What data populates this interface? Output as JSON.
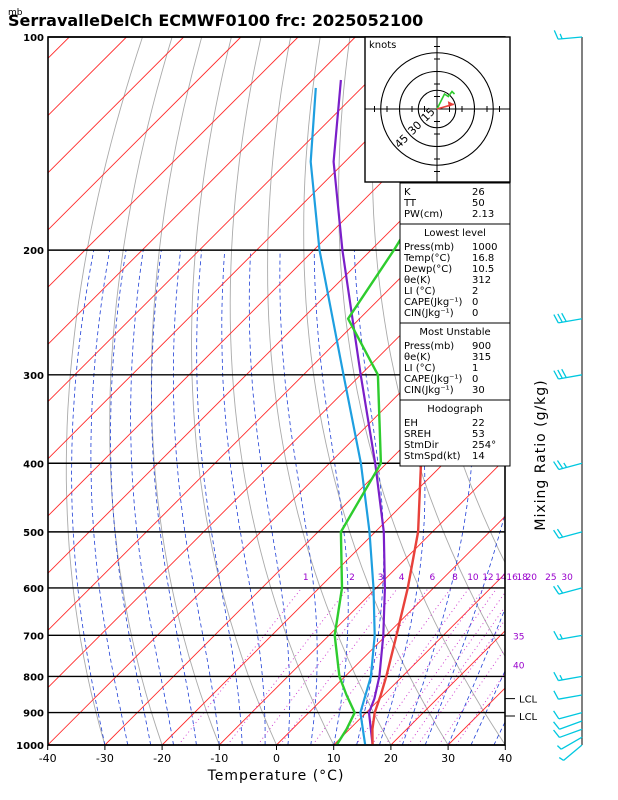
{
  "chart_data": {
    "type": "skew-t log-p sounding",
    "title": "SerravalleDelCh ECMWF0100 frc: 2025052100",
    "pressure_unit": "mb",
    "xlabel": "Temperature (°C)",
    "ylabel_right": "Mixing Ratio (g/kg)",
    "x_ticks": [
      -40,
      -30,
      -20,
      -10,
      0,
      10,
      20,
      30,
      40
    ],
    "pressure_levels": [
      100,
      200,
      300,
      400,
      500,
      600,
      700,
      800,
      900,
      1000
    ],
    "mixing_ratio_labels": [
      "1",
      "2",
      "3",
      "4",
      "6",
      "8",
      "10",
      "12",
      "14",
      "16",
      "18",
      "20",
      "25",
      "30"
    ],
    "mixing_ratio_values": [
      1,
      2,
      3,
      4,
      6,
      8,
      10,
      12,
      14,
      16,
      18,
      20,
      25,
      30
    ],
    "theta_e_labels": [
      "35",
      "40"
    ],
    "lcl_labels": [
      "LCL",
      "LCL"
    ],
    "lcl_pressures": [
      860,
      910
    ],
    "temperature_profile": [
      {
        "p": 1000,
        "t": 16.8
      },
      {
        "p": 950,
        "t": 14.0
      },
      {
        "p": 900,
        "t": 11.5
      },
      {
        "p": 850,
        "t": 9.5
      },
      {
        "p": 800,
        "t": 7.2
      },
      {
        "p": 700,
        "t": 1.8
      },
      {
        "p": 600,
        "t": -4.5
      },
      {
        "p": 500,
        "t": -12.5
      },
      {
        "p": 400,
        "t": -24.0
      },
      {
        "p": 300,
        "t": -39.0
      },
      {
        "p": 250,
        "t": -49.0
      },
      {
        "p": 200,
        "t": -49.5
      },
      {
        "p": 150,
        "t": -52.0
      },
      {
        "p": 100,
        "t": -59.0
      }
    ],
    "dewpoint_profile": [
      {
        "p": 1000,
        "t": 10.5
      },
      {
        "p": 950,
        "t": 9.5
      },
      {
        "p": 900,
        "t": 8.0
      },
      {
        "p": 850,
        "t": 3.5
      },
      {
        "p": 800,
        "t": -1.0
      },
      {
        "p": 700,
        "t": -9.0
      },
      {
        "p": 600,
        "t": -16.0
      },
      {
        "p": 500,
        "t": -26.0
      },
      {
        "p": 400,
        "t": -31.0
      },
      {
        "p": 300,
        "t": -47.0
      },
      {
        "p": 250,
        "t": -62.0
      },
      {
        "p": 200,
        "t": -66.0
      },
      {
        "p": 150,
        "t": -72.0
      },
      {
        "p": 100,
        "t": -80.0
      }
    ],
    "parcel_profile": [
      {
        "p": 1000,
        "t": 16.8
      },
      {
        "p": 900,
        "t": 10.5
      },
      {
        "p": 860,
        "t": 9.0
      },
      {
        "p": 800,
        "t": 6.0
      },
      {
        "p": 700,
        "t": -0.5
      },
      {
        "p": 600,
        "t": -8.5
      },
      {
        "p": 500,
        "t": -18.5
      },
      {
        "p": 400,
        "t": -32.0
      },
      {
        "p": 300,
        "t": -50.0
      },
      {
        "p": 200,
        "t": -75.0
      },
      {
        "p": 150,
        "t": -92.0
      },
      {
        "p": 115,
        "t": -105.0
      }
    ],
    "virtual_temperature_profile": [
      {
        "p": 1000,
        "t": 15.5
      },
      {
        "p": 900,
        "t": 9.0
      },
      {
        "p": 800,
        "t": 4.5
      },
      {
        "p": 700,
        "t": -2.0
      },
      {
        "p": 600,
        "t": -10.5
      },
      {
        "p": 500,
        "t": -21.0
      },
      {
        "p": 400,
        "t": -34.5
      },
      {
        "p": 300,
        "t": -53.0
      },
      {
        "p": 200,
        "t": -79.0
      },
      {
        "p": 150,
        "t": -96.0
      },
      {
        "p": 118,
        "t": -108.0
      }
    ],
    "wind_barbs": [
      {
        "p": 1000,
        "dir": 230,
        "spd": 5
      },
      {
        "p": 975,
        "dir": 240,
        "spd": 5
      },
      {
        "p": 950,
        "dir": 250,
        "spd": 10
      },
      {
        "p": 925,
        "dir": 250,
        "spd": 10
      },
      {
        "p": 900,
        "dir": 255,
        "spd": 10
      },
      {
        "p": 850,
        "dir": 260,
        "spd": 10
      },
      {
        "p": 800,
        "dir": 260,
        "spd": 15
      },
      {
        "p": 700,
        "dir": 260,
        "spd": 15
      },
      {
        "p": 600,
        "dir": 255,
        "spd": 20
      },
      {
        "p": 500,
        "dir": 255,
        "spd": 20
      },
      {
        "p": 400,
        "dir": 255,
        "spd": 25
      },
      {
        "p": 300,
        "dir": 260,
        "spd": 30
      },
      {
        "p": 250,
        "dir": 260,
        "spd": 30
      },
      {
        "p": 100,
        "dir": 265,
        "spd": 15
      }
    ],
    "hodograph": {
      "label": "knots",
      "rings": [
        15,
        30,
        45
      ],
      "ring_labels": [
        "15",
        "30",
        "45"
      ],
      "green_trace": [
        [
          0,
          0
        ],
        [
          2,
          4
        ],
        [
          4,
          8
        ],
        [
          6,
          12
        ],
        [
          9,
          10
        ],
        [
          12,
          14
        ],
        [
          14,
          12
        ]
      ],
      "storm_motion": {
        "dir": 254,
        "spd": 14
      }
    },
    "indices": {
      "top": [
        {
          "label": "K",
          "value": "26"
        },
        {
          "label": "TT",
          "value": "50"
        },
        {
          "label": "PW(cm)",
          "value": "2.13"
        }
      ],
      "lowest_title": "Lowest level",
      "lowest": [
        {
          "label": "Press(mb)",
          "value": "1000"
        },
        {
          "label": "Temp(°C)",
          "value": "16.8"
        },
        {
          "label": "Dewp(°C)",
          "value": "10.5"
        },
        {
          "label": "θe(K)",
          "value": "312"
        },
        {
          "label": "LI (°C)",
          "value": "2"
        },
        {
          "label": "CAPE(Jkg⁻¹)",
          "value": "0"
        },
        {
          "label": "CIN(Jkg⁻¹)",
          "value": "0"
        }
      ],
      "unstable_title": "Most Unstable",
      "unstable": [
        {
          "label": "Press(mb)",
          "value": "900"
        },
        {
          "label": "θe(K)",
          "value": "315"
        },
        {
          "label": "LI (°C)",
          "value": "1"
        },
        {
          "label": "CAPE(Jkg⁻¹)",
          "value": "0"
        },
        {
          "label": "CIN(Jkg⁻¹)",
          "value": "30"
        }
      ],
      "hodo_title": "Hodograph",
      "hodo": [
        {
          "label": "EH",
          "value": "22"
        },
        {
          "label": "SREH",
          "value": "53"
        },
        {
          "label": "StmDir",
          "value": "254°"
        },
        {
          "label": "StmSpd(kt)",
          "value": "14"
        }
      ]
    },
    "colors": {
      "temperature": "#e8413b",
      "dewpoint": "#2ecc2e",
      "parcel": "#7a1fc9",
      "virtual": "#1e9fe0",
      "isotherm": "#ff2a2a",
      "dry_adiabat": "#aaaaaa",
      "moist_adiabat": "#1f3fd6",
      "mixing_ratio": "#cc33cc",
      "wind_barb": "#00c8e0",
      "mixing_label": "#9900cc"
    }
  }
}
